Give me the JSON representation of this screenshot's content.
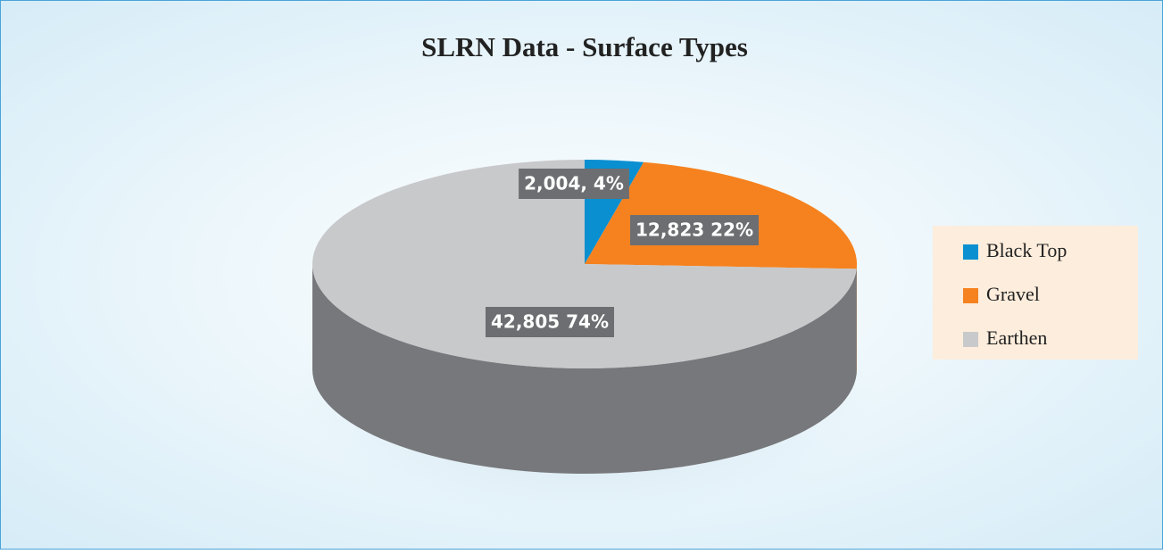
{
  "chart_data": {
    "type": "pie",
    "title": "SLRN Data - Surface Types",
    "categories": [
      "Black Top",
      "Gravel",
      "Earthen"
    ],
    "values": [
      2004,
      12823,
      42805
    ],
    "value_labels": [
      "2,004, 4%",
      "12,823 22%",
      "42,805 74%"
    ],
    "colors": [
      "#0a8fd1",
      "#f5821f",
      "#c8c9cb"
    ],
    "side_colors": [
      "#06679a",
      "#b75f12",
      "#77787b"
    ],
    "legend": "right"
  }
}
